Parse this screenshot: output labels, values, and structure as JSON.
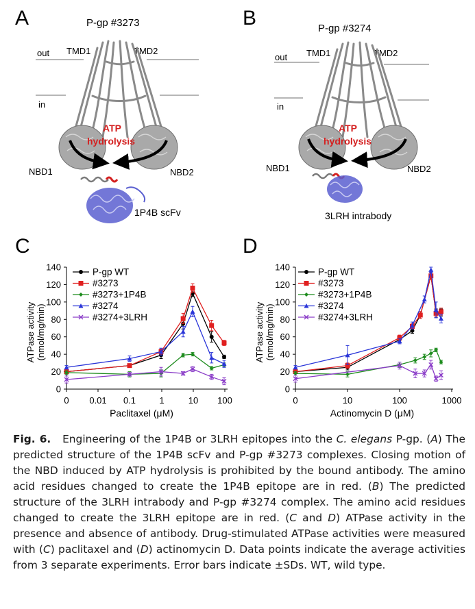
{
  "panels": {
    "A": {
      "letter": "A",
      "title": "P-gp #3273",
      "out": "out",
      "in": "in",
      "tmd1": "TMD1",
      "tmd2": "TMD2",
      "nbd1": "NBD1",
      "nbd2": "NBD2",
      "atp_line1": "ATP",
      "atp_line2": "hydrolysis",
      "antibody": "1P4B scFv"
    },
    "B": {
      "letter": "B",
      "title": "P-gp #3274",
      "out": "out",
      "in": "in",
      "tmd1": "TMD1",
      "tmd2": "TMD2",
      "nbd1": "NBD1",
      "nbd2": "NBD2",
      "atp_line1": "ATP",
      "atp_line2": "hydrolysis",
      "antibody": "3LRH intrabody"
    }
  },
  "colors": {
    "structure": "#8a8a8a",
    "antibody": "#5a5fd0",
    "epitope": "#d42020",
    "atp_text": "#d42020"
  },
  "chart_data": [
    {
      "panel": "C",
      "type": "line",
      "xscale": "log-with-zero",
      "xlabel": "Paclitaxel (μM)",
      "ylabel_line1": "ATPase activity",
      "ylabel_line2": "(nmol/mg/min)",
      "xticks": [
        0,
        0.01,
        0.1,
        1,
        10,
        100
      ],
      "xtick_labels": [
        "0",
        "0.01",
        "0.1",
        "1",
        "10",
        "100"
      ],
      "yticks": [
        0,
        20,
        40,
        60,
        80,
        100,
        120,
        140
      ],
      "ylim": [
        0,
        140
      ],
      "legend_position": "top-left",
      "series": [
        {
          "name": "P-gp WT",
          "color": "#000000",
          "marker": "circle",
          "x": [
            0,
            0.1,
            1,
            5,
            10,
            40,
            100
          ],
          "y": [
            20,
            27,
            39,
            75,
            110,
            60,
            37
          ],
          "err": [
            2,
            2,
            4,
            6,
            4,
            6,
            2
          ]
        },
        {
          "name": "#3273",
          "color": "#e02020",
          "marker": "square",
          "x": [
            0,
            0.1,
            1,
            5,
            10,
            40,
            100
          ],
          "y": [
            20,
            27,
            43,
            81,
            116,
            73,
            53
          ],
          "err": [
            2,
            2,
            3,
            6,
            5,
            6,
            3
          ]
        },
        {
          "name": "#3273+1P4B",
          "color": "#1e8c1e",
          "marker": "diamond",
          "x": [
            0,
            0.1,
            1,
            5,
            10,
            40,
            100
          ],
          "y": [
            19,
            17,
            18,
            39,
            40,
            24,
            28
          ],
          "err": [
            2,
            3,
            4,
            2,
            2,
            2,
            2
          ]
        },
        {
          "name": "#3274",
          "color": "#2a35d8",
          "marker": "triangle",
          "x": [
            0,
            0.1,
            1,
            5,
            10,
            40,
            100
          ],
          "y": [
            25,
            35,
            43,
            66,
            89,
            36,
            29
          ],
          "err": [
            2,
            3,
            4,
            6,
            6,
            6,
            4
          ]
        },
        {
          "name": "#3274+3LRH",
          "color": "#8a3cc8",
          "marker": "x",
          "x": [
            0,
            0.1,
            1,
            5,
            10,
            40,
            100
          ],
          "y": [
            11,
            17,
            20,
            18,
            23,
            14,
            9
          ],
          "err": [
            4,
            2,
            5,
            2,
            3,
            3,
            4
          ]
        }
      ]
    },
    {
      "panel": "D",
      "type": "line",
      "xscale": "log-with-zero",
      "xlabel": "Actinomycin D (μM)",
      "ylabel_line1": "ATPase activity",
      "ylabel_line2": "(nmol/mg/min)",
      "xticks": [
        0,
        10,
        100,
        1000
      ],
      "xtick_labels": [
        "0",
        "10",
        "100",
        "1000"
      ],
      "yticks": [
        0,
        20,
        40,
        60,
        80,
        100,
        120,
        140
      ],
      "ylim": [
        0,
        140
      ],
      "legend_position": "top-left",
      "series": [
        {
          "name": "P-gp WT",
          "color": "#000000",
          "marker": "circle",
          "x": [
            0,
            10,
            100,
            175,
            250,
            400,
            500,
            625
          ],
          "y": [
            20,
            25,
            57,
            67,
            85,
            130,
            87,
            88
          ],
          "err": [
            2,
            3,
            3,
            3,
            4,
            4,
            5,
            4
          ]
        },
        {
          "name": "#3273",
          "color": "#e02020",
          "marker": "square",
          "x": [
            0,
            10,
            100,
            175,
            250,
            400,
            500,
            625
          ],
          "y": [
            20,
            27,
            59,
            72,
            85,
            130,
            87,
            89
          ],
          "err": [
            2,
            3,
            3,
            3,
            4,
            4,
            4,
            4
          ]
        },
        {
          "name": "#3273+1P4B",
          "color": "#1e8c1e",
          "marker": "diamond",
          "x": [
            0,
            10,
            100,
            200,
            300,
            400,
            500,
            625
          ],
          "y": [
            18,
            17,
            28,
            33,
            37,
            41,
            45,
            31
          ],
          "err": [
            2,
            3,
            3,
            3,
            3,
            4,
            2,
            2
          ]
        },
        {
          "name": "#3274",
          "color": "#2a35d8",
          "marker": "triangle",
          "x": [
            0,
            10,
            100,
            175,
            300,
            400,
            500,
            625
          ],
          "y": [
            25,
            39,
            55,
            73,
            103,
            137,
            91,
            81
          ],
          "err": [
            2,
            11,
            3,
            4,
            4,
            3,
            9,
            5
          ]
        },
        {
          "name": "#3274+3LRH",
          "color": "#8a3cc8",
          "marker": "x",
          "x": [
            0,
            100,
            200,
            300,
            400,
            500,
            625
          ],
          "y": [
            12,
            27,
            18,
            18,
            28,
            12,
            16
          ],
          "err": [
            4,
            4,
            5,
            4,
            5,
            3,
            5
          ]
        }
      ]
    }
  ],
  "caption": {
    "fig_label": "Fig. 6.",
    "text1": "Engineering of the 1P4B or 3LRH epitopes into the ",
    "species": "C. elegans",
    "text2": " P-gp. (",
    "a": "A",
    "text3": ") The predicted structure of the 1P4B scFv and P-gp #3273 complexes. Closing motion of the NBD induced by ATP hydrolysis is prohibited by the bound antibody. The amino acid residues changed to create the 1P4B epitope are in red. (",
    "b": "B",
    "text4": ") The predicted structure of the 3LRH intrabody and P-gp #3274 complex. The amino acid residues changed to create the 3LRH epitope are in red. (",
    "c": "C",
    "text5": " and ",
    "d": "D",
    "text6": ") ATPase activity in the presence and absence of antibody. Drug-stimulated ATPase activities were measured with (",
    "c2": "C",
    "text7": ") paclitaxel and (",
    "d2": "D",
    "text8": ") actinomycin D. Data points indicate the average activities from 3 separate experiments. Error bars indicate ±SDs. WT, wild type."
  }
}
